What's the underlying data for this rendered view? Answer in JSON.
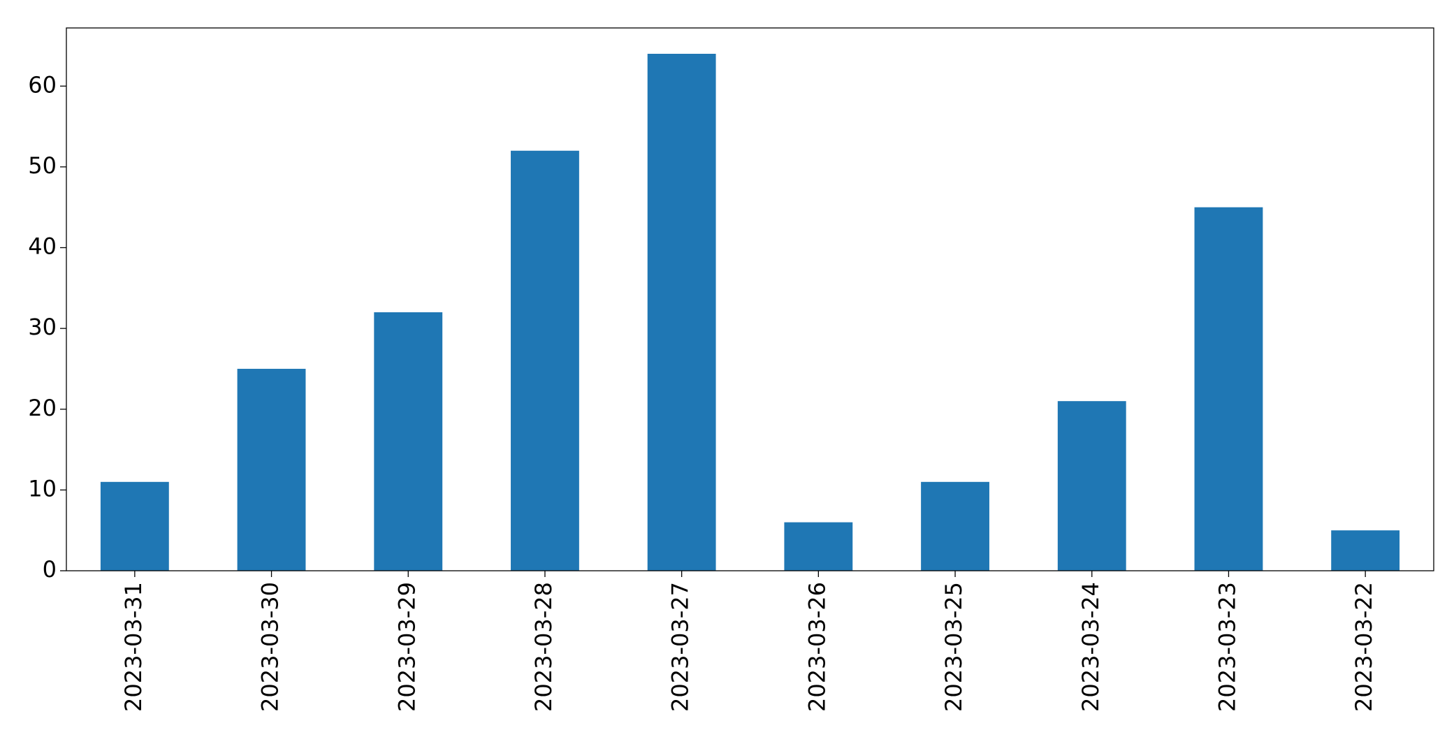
{
  "chart_data": {
    "type": "bar",
    "categories": [
      "2023-03-31",
      "2023-03-30",
      "2023-03-29",
      "2023-03-28",
      "2023-03-27",
      "2023-03-26",
      "2023-03-25",
      "2023-03-24",
      "2023-03-23",
      "2023-03-22"
    ],
    "values": [
      11,
      25,
      32,
      52,
      64,
      6,
      11,
      21,
      45,
      5
    ],
    "color": "#1f77b4",
    "ylim": [
      0,
      67.2
    ],
    "yticks": [
      0,
      10,
      20,
      30,
      40,
      50,
      60
    ],
    "grid": false
  }
}
